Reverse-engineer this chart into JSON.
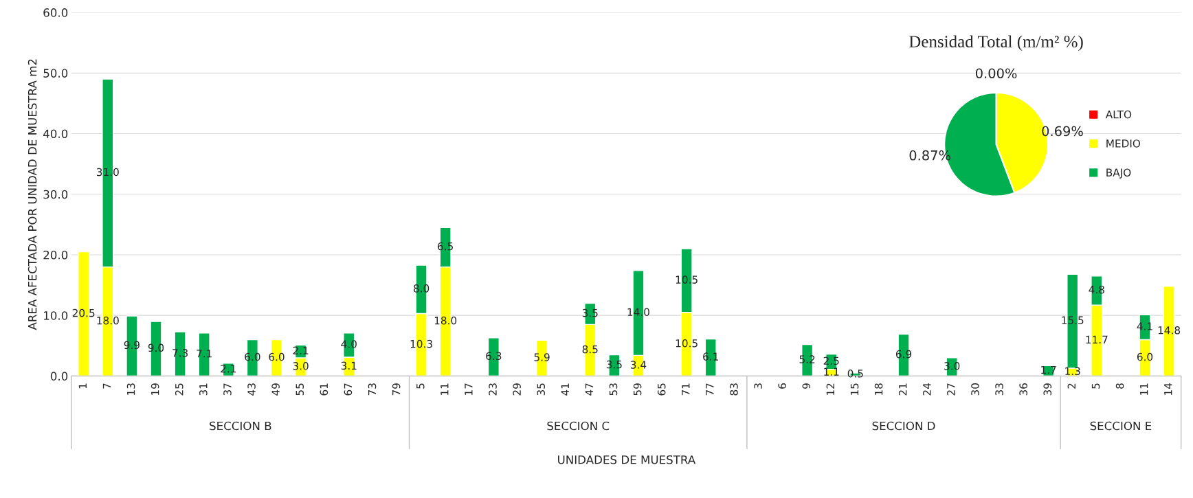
{
  "chart_data": [
    {
      "type": "bar",
      "stacked": true,
      "xlabel": "UNIDADES DE MUESTRA",
      "ylabel": "AREA AFECTADA POR UNIDAD DE MUESTRA m2",
      "categories": [
        "1",
        "7",
        "13",
        "19",
        "25",
        "31",
        "37",
        "43",
        "49",
        "55",
        "61",
        "67",
        "73",
        "79",
        "5",
        "11",
        "17",
        "23",
        "29",
        "35",
        "41",
        "47",
        "53",
        "59",
        "65",
        "71",
        "77",
        "83",
        "3",
        "6",
        "9",
        "12",
        "15",
        "18",
        "21",
        "24",
        "27",
        "30",
        "33",
        "36",
        "39",
        "2",
        "5",
        "8",
        "11",
        "14"
      ],
      "annotations": [
        "SECCION B",
        "SECCION C",
        "SECCION D",
        "SECCION E"
      ],
      "series": [
        {
          "color": "#ffff00",
          "values": [
            20.5,
            18.0,
            null,
            null,
            null,
            null,
            null,
            null,
            6.0,
            3.0,
            null,
            3.1,
            null,
            null,
            10.3,
            18.0,
            null,
            null,
            null,
            5.9,
            null,
            8.5,
            null,
            3.4,
            null,
            10.5,
            null,
            null,
            null,
            null,
            null,
            1.1,
            null,
            null,
            null,
            null,
            null,
            null,
            null,
            null,
            null,
            1.3,
            11.7,
            null,
            6.0,
            14.8
          ],
          "value_labels": [
            "20.5",
            "18.0",
            null,
            null,
            null,
            null,
            null,
            null,
            "6.0",
            "3.0",
            null,
            "3.1",
            null,
            null,
            "10.3",
            "18.0",
            null,
            null,
            null,
            "5.9",
            null,
            "8.5",
            null,
            "3.4",
            null,
            "10.5",
            null,
            null,
            null,
            null,
            null,
            "1.1",
            null,
            null,
            null,
            null,
            null,
            null,
            null,
            null,
            null,
            "1.3",
            "11.7",
            null,
            "6.0",
            "14.8"
          ]
        },
        {
          "color": "#00b050",
          "values": [
            null,
            31.0,
            9.9,
            9.0,
            7.3,
            7.1,
            2.1,
            6.0,
            null,
            2.1,
            null,
            4.0,
            null,
            null,
            8.0,
            6.5,
            null,
            6.3,
            null,
            null,
            null,
            3.5,
            3.5,
            14.0,
            null,
            10.5,
            6.1,
            null,
            null,
            null,
            5.2,
            2.5,
            0.5,
            null,
            6.9,
            null,
            3.0,
            null,
            null,
            null,
            1.7,
            15.5,
            4.8,
            null,
            4.1,
            null
          ],
          "value_labels": [
            null,
            "31.0",
            "9.9",
            "9.0",
            "7.3",
            "7.1",
            "2.1",
            "6.0",
            null,
            "2.1",
            null,
            "4.0",
            null,
            null,
            "8.0",
            "6.5",
            null,
            "6.3",
            null,
            null,
            null,
            "3.5",
            "3.5",
            "14.0",
            null,
            "10.5",
            "6.1",
            null,
            null,
            null,
            "5.2",
            "2.5",
            "0.5",
            null,
            "6.9",
            null,
            "3.0",
            null,
            null,
            null,
            "1.7",
            "15.5",
            "4.8",
            null,
            "4.1",
            null
          ]
        }
      ],
      "ylim": [
        0,
        60
      ],
      "yticks": [
        {
          "value": 0,
          "label": "0.0"
        },
        {
          "value": 10,
          "label": "10.0"
        },
        {
          "value": 20,
          "label": "20.0"
        },
        {
          "value": 30,
          "label": "30.0"
        },
        {
          "value": 40,
          "label": "40.0"
        },
        {
          "value": 50,
          "label": "50.0"
        },
        {
          "value": 60,
          "label": "60.0"
        }
      ],
      "grid": "y",
      "legend": false
    },
    {
      "type": "pie",
      "title": "Densidad Total (m/m² %)",
      "categories": [
        "ALTO",
        "MEDIO",
        "BAJO"
      ],
      "values": [
        0,
        0.69,
        0.87
      ],
      "colors": [
        "#ff0000",
        "#ffff00",
        "#00b050"
      ],
      "value_labels": [
        "0.00%",
        "0.69%",
        "0.87%"
      ],
      "legend": "right"
    }
  ]
}
